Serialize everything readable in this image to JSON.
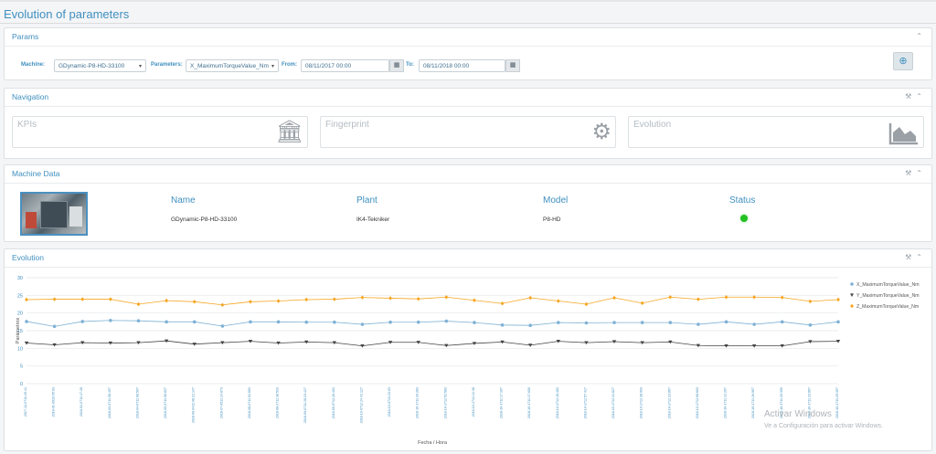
{
  "page": {
    "title": "Evolution of parameters"
  },
  "params": {
    "title": "Params",
    "machine_label": "Machine:",
    "machine_value": "GDynamic-P8-HD-33100",
    "parameters_label": "Parameters:",
    "parameters_value": "X_MaximumTorqueValue_Nm",
    "from_label": "From:",
    "from_value": "08/11/2017 00:00",
    "to_label": "To:",
    "to_value": "08/11/2018 00:00",
    "search_icon": "zoom-in-icon",
    "calendar_icon": "calendar-icon",
    "collapse_icon": "chevron-up-icon"
  },
  "navigation": {
    "title": "Navigation",
    "cards": [
      {
        "label": "KPIs",
        "icon": "bank-icon"
      },
      {
        "label": "Fingerprint",
        "icon": "gears-icon"
      },
      {
        "label": "Evolution",
        "icon": "area-chart-icon"
      }
    ]
  },
  "machine_data": {
    "title": "Machine Data",
    "name_label": "Name",
    "name_value": "GDynamic-P8-HD-33100",
    "plant_label": "Plant",
    "plant_value": "IK4-Tekniker",
    "model_label": "Model",
    "model_value": "P8-HD",
    "status_label": "Status",
    "status_color": "#22c022"
  },
  "evolution": {
    "title": "Evolution"
  },
  "colors": {
    "accent": "#3f8fbf",
    "x_series": "#7fb2d5",
    "y_series": "#444444",
    "z_series": "#f5a623"
  },
  "chart_data": {
    "type": "line",
    "xlabel": "Fecha / Hora",
    "ylabel": "Parámetros",
    "ylim": [
      0,
      30
    ],
    "yticks": [
      0,
      5,
      10,
      15,
      20,
      25,
      30
    ],
    "grid": true,
    "legend": "right",
    "x": [
      "2017-12-0711:45:41",
      "2018-01-0910:05:03",
      "2018-02-0711:47:28",
      "2018-03-0711:58:457",
      "2018-04-0711:08:507",
      "2018-05-0711:08:837",
      "2018-06-0411:08:21:147",
      "2018-07-0511:24:873",
      "2018-08-0711:52:893",
      "2018-08-2711:38:533",
      "2018-09-0711:28:23:417",
      "2018-09-0712:26:403",
      "2018-10-0712:24:41:127",
      "2018-10-0713:23:03",
      "2018-10-1711:30:283",
      "2018-10-1712:52:583",
      "2018-10-1712:44:38",
      "2018-10-1711:17:167",
      "2018-10-1711:17:650",
      "2018-10-1712:48:483",
      "2018-10-1712:57:417",
      "2018-10-1712:24:827",
      "2018-10-1712:38:903",
      "2018-10-1712:23:857",
      "2018-10-1712:08:603",
      "2018-10-1711:12:267",
      "2018-10-1711:26:957",
      "2018-10-1711:20:350",
      "2018-10-1711:23:857",
      "2018-10-1711:29:357"
    ],
    "series": [
      {
        "name": "X_MaximumTorqueValue_Nm",
        "marker": "circle",
        "values": [
          17.6,
          16.2,
          17.6,
          17.9,
          17.8,
          17.5,
          17.5,
          16.3,
          17.5,
          17.5,
          17.4,
          17.4,
          16.8,
          17.4,
          17.4,
          17.7,
          17.3,
          16.6,
          16.5,
          17.3,
          17.2,
          17.3,
          17.3,
          17.3,
          16.8,
          17.5,
          16.8,
          17.5,
          16.6,
          17.5
        ]
      },
      {
        "name": "Y_MaximumTorqueValue_Nm",
        "marker": "triangle-down",
        "values": [
          11.5,
          11.0,
          11.6,
          11.5,
          11.6,
          12.1,
          11.2,
          11.6,
          12.0,
          11.5,
          11.8,
          11.6,
          10.7,
          11.7,
          11.7,
          10.8,
          11.4,
          11.8,
          10.9,
          12.0,
          11.6,
          11.9,
          11.6,
          11.8,
          10.8,
          10.7,
          10.7,
          10.7,
          11.9,
          12.0
        ]
      },
      {
        "name": "Z_MaximumTorqueValue_Nm",
        "marker": "diamond",
        "values": [
          23.8,
          23.9,
          23.9,
          23.9,
          22.5,
          23.5,
          23.2,
          22.3,
          23.2,
          23.4,
          23.8,
          23.9,
          24.4,
          24.2,
          24.0,
          24.5,
          23.6,
          22.7,
          24.3,
          23.4,
          22.5,
          24.3,
          22.8,
          24.5,
          23.9,
          24.5,
          24.5,
          24.4,
          23.3,
          23.8
        ]
      }
    ]
  },
  "watermark": {
    "line1": "Activar Windows",
    "line2": "Ve a Configuración para activar Windows."
  }
}
